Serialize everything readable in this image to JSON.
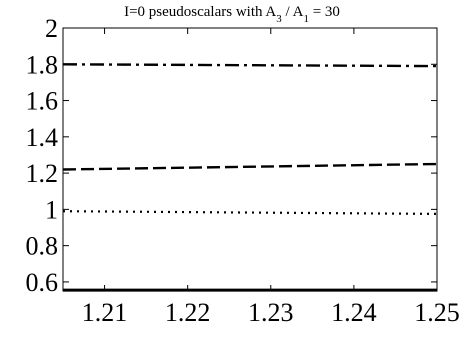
{
  "chart_data": {
    "type": "line",
    "title": {
      "prefix": "I=0 pseudoscalars with A",
      "sub1": "3",
      "mid": " / A",
      "sub2": "1",
      "suffix": " = 30"
    },
    "xlabel": "",
    "ylabel": "",
    "xlim": [
      1.205,
      1.25
    ],
    "ylim": [
      0.55,
      2.0
    ],
    "x_ticks": [
      1.21,
      1.22,
      1.23,
      1.24,
      1.25
    ],
    "x_tick_labels": [
      "1.21",
      "1.22",
      "1.23",
      "1.24",
      "1.25"
    ],
    "y_ticks": [
      0.6,
      0.8,
      1.0,
      1.2,
      1.4,
      1.6,
      1.8,
      2.0
    ],
    "y_tick_labels": [
      "0.6",
      "0.8",
      "1",
      "1.2",
      "1.4",
      "1.6",
      "1.8",
      "2"
    ],
    "grid": false,
    "legend": "none",
    "series": [
      {
        "style": "dashdot",
        "x": [
          1.205,
          1.25
        ],
        "y": [
          1.8,
          1.79
        ]
      },
      {
        "style": "dashed",
        "x": [
          1.205,
          1.25
        ],
        "y": [
          1.22,
          1.25
        ]
      },
      {
        "style": "dotted",
        "x": [
          1.205,
          1.25
        ],
        "y": [
          0.99,
          0.975
        ]
      },
      {
        "style": "solid",
        "x": [
          1.205,
          1.25
        ],
        "y": [
          0.555,
          0.555
        ]
      }
    ],
    "colors": {
      "line": "#000000",
      "axis": "#000000",
      "background": "#ffffff"
    }
  }
}
